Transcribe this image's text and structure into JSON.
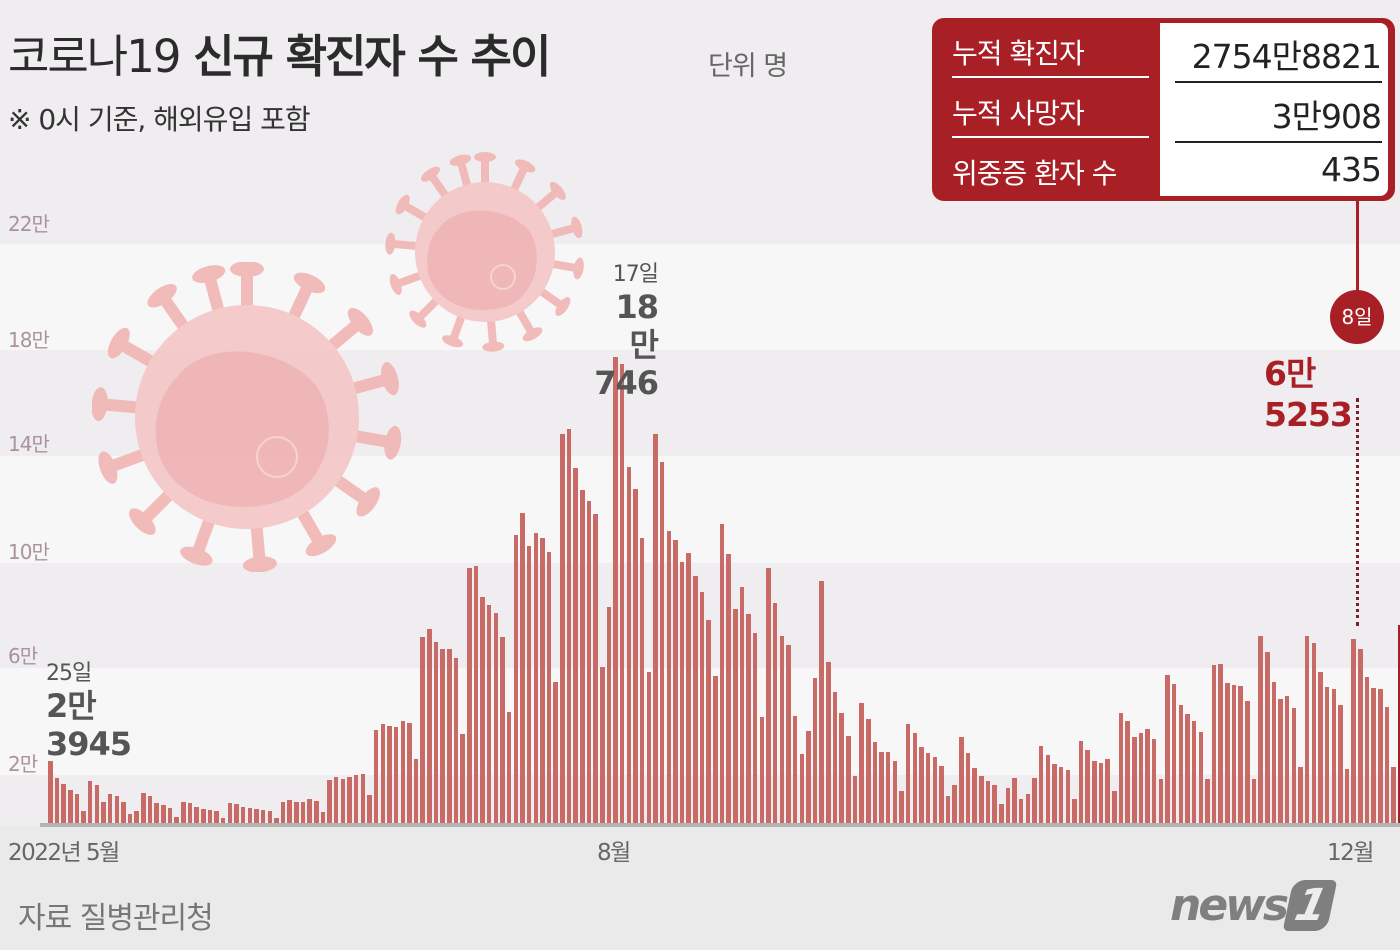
{
  "title": {
    "main_light": "코로나19",
    "main_bold": "신규 확진자 수 추이",
    "unit": "단위 명"
  },
  "note": "※ 0시 기준, 해외유입 포함",
  "stats": {
    "rows": [
      {
        "label": "누적 확진자",
        "value": "2754만8821"
      },
      {
        "label": "누적 사망자",
        "value": "3만908"
      },
      {
        "label": "위중증 환자 수",
        "value": "435"
      }
    ]
  },
  "annotations": {
    "first": {
      "day": "25일",
      "value_line1": "2만",
      "value_line2": "3945"
    },
    "peak": {
      "day": "17일",
      "value_line1": "18만",
      "value_line2": "746"
    },
    "last": {
      "day": "8일",
      "value": "6만5253"
    }
  },
  "source": "자료 질병관리청",
  "logo": {
    "text": "news",
    "number": "1"
  },
  "colors": {
    "bar": "#c86a65",
    "bar_highlight": "#a41f27",
    "accent": "#a91f26"
  },
  "chart_data": {
    "type": "bar",
    "title": "코로나19 신규 확진자 수 추이",
    "subtitle": "※ 0시 기준, 해외유입 포함",
    "unit": "명",
    "xlabel": "",
    "ylabel": "",
    "x_ticks": [
      "2022년 5월",
      "8월",
      "12월"
    ],
    "y_ticks": [
      "2만",
      "6만",
      "10만",
      "14만",
      "18만",
      "22만"
    ],
    "y_tick_values": [
      20000,
      60000,
      100000,
      140000,
      180000,
      220000
    ],
    "ylim": [
      0,
      230000
    ],
    "grid": "alternating horizontal bands",
    "x_start": "2022-05-25",
    "x_end": "2022-12-08",
    "values": [
      23945,
      17400,
      15100,
      12800,
      11200,
      4700,
      16300,
      14700,
      8200,
      11200,
      10500,
      8100,
      3500,
      4700,
      11600,
      10500,
      7800,
      7000,
      5800,
      2400,
      8100,
      7800,
      6300,
      5400,
      5000,
      4700,
      2100,
      7800,
      7400,
      6200,
      6000,
      5600,
      5200,
      4700,
      2100,
      8100,
      8900,
      8100,
      8100,
      9300,
      8500,
      4300,
      16700,
      17800,
      17000,
      17800,
      18600,
      18900,
      10800,
      36000,
      38400,
      37600,
      37200,
      39500,
      38800,
      24700,
      72000,
      75000,
      70000,
      67500,
      67500,
      64000,
      34500,
      99000,
      99500,
      87600,
      84500,
      81400,
      72000,
      43000,
      111700,
      120000,
      107300,
      112500,
      110500,
      105100,
      54600,
      150800,
      152700,
      137600,
      129100,
      124800,
      119800,
      60500,
      83700,
      180746,
      178000,
      138000,
      129500,
      110500,
      58500,
      150800,
      139800,
      113000,
      109500,
      101200,
      104500,
      95600,
      89400,
      78500,
      56800,
      115800,
      104100,
      83100,
      91300,
      81200,
      73600,
      41200,
      99000,
      85300,
      72400,
      68900,
      41600,
      26700,
      35700,
      56200,
      93800,
      62400,
      50800,
      42600,
      33700,
      18200,
      46500,
      40300,
      31400,
      27500,
      27500,
      24000,
      12400,
      38400,
      34900,
      29500,
      27100,
      25600,
      22100,
      10500,
      14700,
      33300,
      27100,
      21300,
      18200,
      16300,
      14700,
      7400,
      13600,
      17400,
      9300,
      11200,
      17400,
      29800,
      26300,
      22900,
      21700,
      20500,
      9300,
      31800,
      28300,
      24000,
      23200,
      24700,
      12400,
      42600,
      39500,
      33300,
      34900,
      36400,
      32600,
      17100,
      57400,
      53900,
      45700,
      42200,
      39500,
      35300,
      17100,
      61200,
      61600,
      54300,
      53500,
      53100,
      47300,
      17000,
      72500,
      66300,
      54700,
      48100,
      49300,
      44600,
      21700,
      72500,
      69800,
      58500,
      52700,
      51900,
      45700,
      20900,
      71300,
      67400,
      56600,
      52300,
      51900,
      45000,
      21700,
      76700,
      73600,
      65253
    ]
  }
}
